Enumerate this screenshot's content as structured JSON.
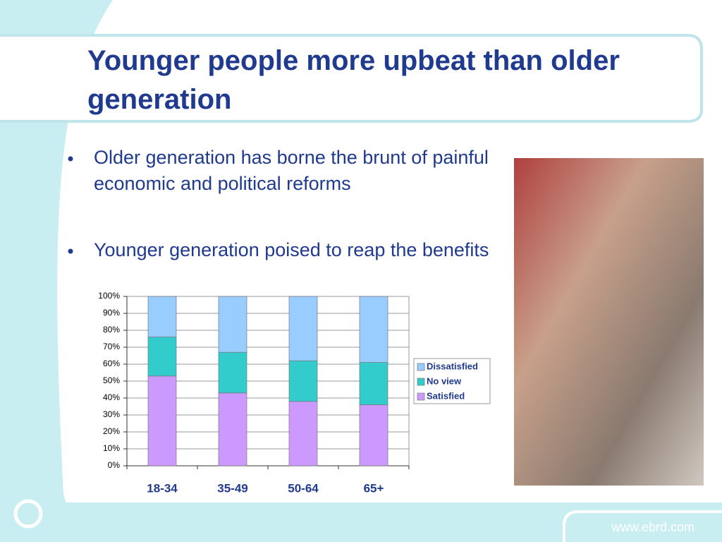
{
  "slide": {
    "title": "Younger people more upbeat than older generation",
    "bullets": [
      "Older generation has borne the brunt of painful economic and political reforms",
      "Younger generation poised to reap the benefits"
    ],
    "footer": "www.ebrd.com"
  },
  "chart_data": {
    "type": "stacked-bar",
    "categories": [
      "18-34",
      "35-49",
      "50-64",
      "65+"
    ],
    "series": [
      {
        "name": "Satisfied",
        "color": "#cc99ff",
        "values": [
          53,
          43,
          38,
          36
        ]
      },
      {
        "name": "No view",
        "color": "#33cccc",
        "values": [
          23,
          24,
          24,
          25
        ]
      },
      {
        "name": "Dissatisfied",
        "color": "#99ccff",
        "values": [
          24,
          33,
          38,
          39
        ]
      }
    ],
    "ylim": [
      0,
      100
    ],
    "yticks": [
      {
        "value": 0,
        "label": "0%"
      },
      {
        "value": 10,
        "label": "10%"
      },
      {
        "value": 20,
        "label": "20%"
      },
      {
        "value": 30,
        "label": "30%"
      },
      {
        "value": 40,
        "label": "40%"
      },
      {
        "value": 50,
        "label": "50%"
      },
      {
        "value": 60,
        "label": "60%"
      },
      {
        "value": 70,
        "label": "70%"
      },
      {
        "value": 80,
        "label": "80%"
      },
      {
        "value": 90,
        "label": "90%"
      },
      {
        "value": 100,
        "label": "100%"
      }
    ],
    "grid": true
  }
}
